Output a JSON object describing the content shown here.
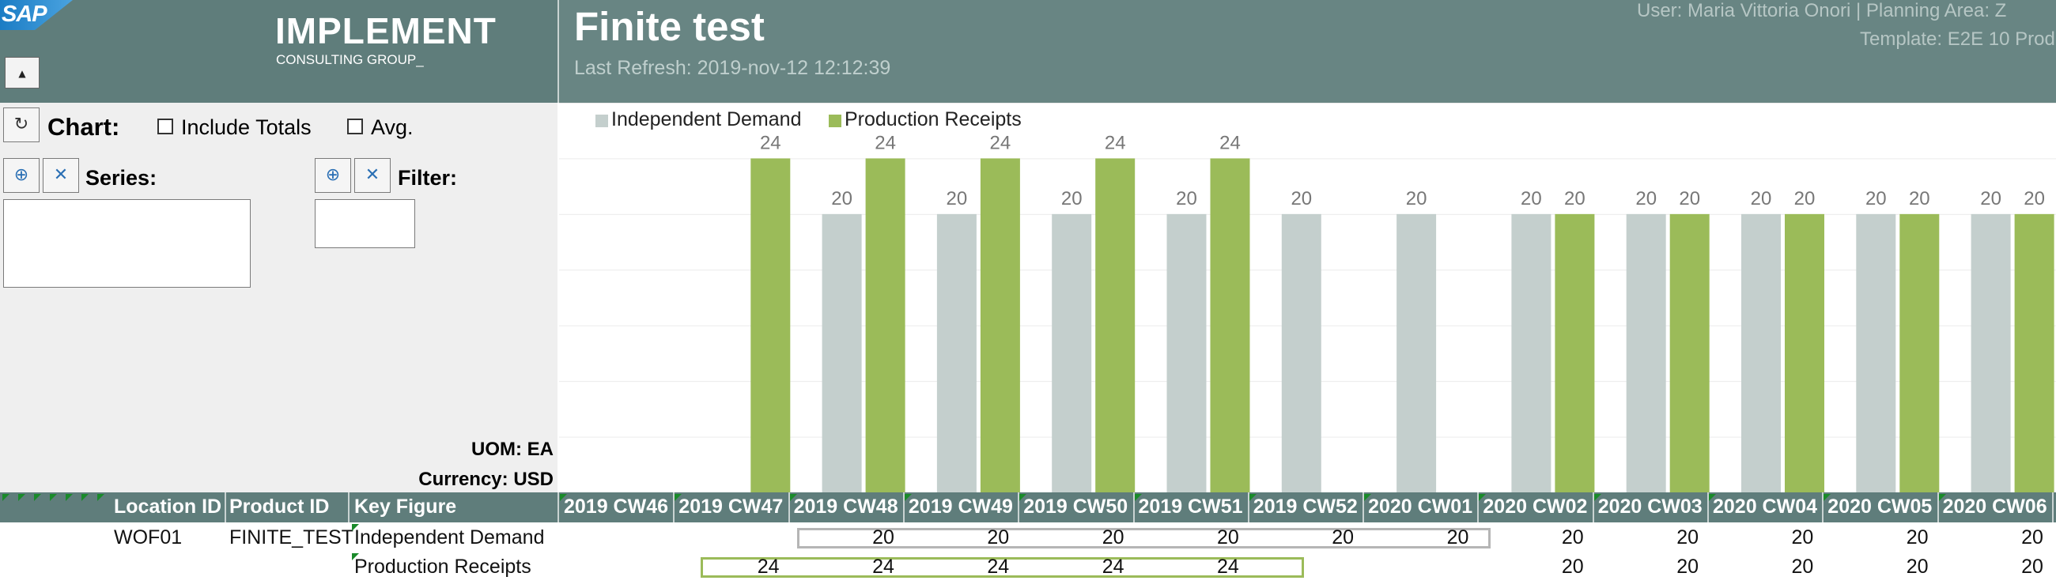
{
  "header": {
    "logo_text": "SAP",
    "brand_line1": "IMPLEMENT",
    "brand_line2": "CONSULTING GROUP_",
    "collapse_icon": "▲",
    "title": "Finite test",
    "last_refresh": "Last Refresh: 2019-nov-12   12:12:39",
    "user": "User: Maria Vittoria Onori   |   Planning Area: Z",
    "template": "Template: E2E 10 Prod"
  },
  "panel": {
    "chart_label": "Chart:",
    "include_totals": "Include Totals",
    "avg": "Avg.",
    "series_label": "Series:",
    "filter_label": "Filter:",
    "uom": "UOM: EA",
    "currency": "Currency: USD"
  },
  "grid": {
    "headers": {
      "location": "Location ID",
      "product": "Product ID",
      "key_figure": "Key Figure"
    },
    "periods": [
      "2019 CW46",
      "2019 CW47",
      "2019 CW48",
      "2019 CW49",
      "2019 CW50",
      "2019 CW51",
      "2019 CW52",
      "2020 CW01",
      "2020 CW02",
      "2020 CW03",
      "2020 CW04",
      "2020 CW05",
      "2020 CW06"
    ],
    "rows": [
      {
        "location": "WOF01",
        "product": "FINITE_TEST",
        "key_figure": "Independent Demand",
        "values": [
          "",
          "",
          "20",
          "20",
          "20",
          "20",
          "20",
          "20",
          "20",
          "20",
          "20",
          "20",
          "20"
        ]
      },
      {
        "location": "",
        "product": "",
        "key_figure": "Production Receipts",
        "values": [
          "",
          "24",
          "24",
          "24",
          "24",
          "24",
          "",
          "",
          "20",
          "20",
          "20",
          "20",
          "20"
        ]
      }
    ]
  },
  "chart_data": {
    "type": "bar",
    "title": "",
    "categories": [
      "2019 CW46",
      "2019 CW47",
      "2019 CW48",
      "2019 CW49",
      "2019 CW50",
      "2019 CW51",
      "2019 CW52",
      "2020 CW01",
      "2020 CW02",
      "2020 CW03",
      "2020 CW04",
      "2020 CW05",
      "2020 CW06"
    ],
    "series": [
      {
        "name": "Independent Demand",
        "color": "#c4cfcd",
        "values": [
          null,
          null,
          20,
          20,
          20,
          20,
          20,
          20,
          20,
          20,
          20,
          20,
          20
        ]
      },
      {
        "name": "Production Receipts",
        "color": "#9bbb59",
        "values": [
          null,
          24,
          24,
          24,
          24,
          24,
          null,
          null,
          20,
          20,
          20,
          20,
          20
        ]
      }
    ],
    "ylim": [
      0,
      28
    ],
    "grid": true,
    "legend": "top-left",
    "label_color": "#777777"
  }
}
